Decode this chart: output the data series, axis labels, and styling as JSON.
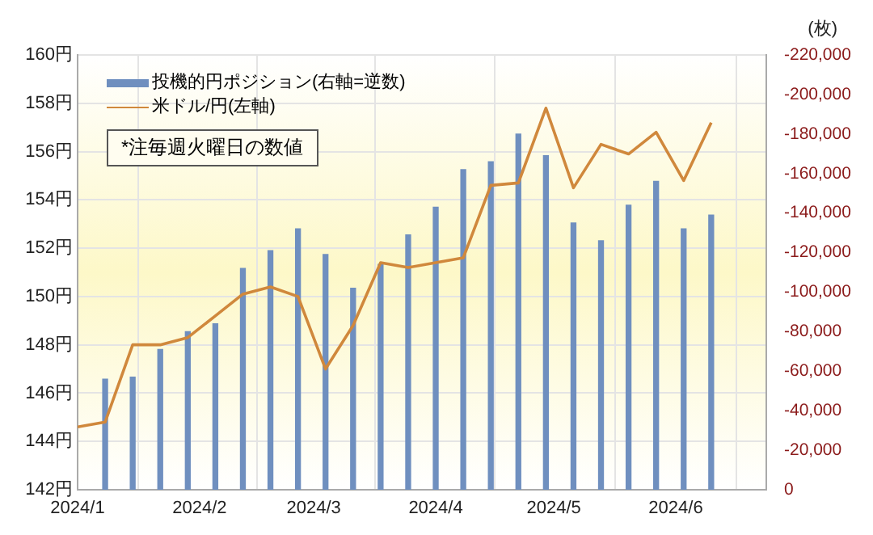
{
  "chart_data": {
    "type": "bar",
    "y2label": "(枚)",
    "legend": "top left",
    "grid": true,
    "annotations": [
      "*注毎週火曜日の数値"
    ],
    "xlim": [
      "2024-01-01",
      "2024-06-24"
    ],
    "xticks": [
      {
        "value": "2024-01-01",
        "label": "2024/1"
      },
      {
        "value": "2024-02-01",
        "label": "2024/2"
      },
      {
        "value": "2024-03-01",
        "label": "2024/3"
      },
      {
        "value": "2024-04-01",
        "label": "2024/4"
      },
      {
        "value": "2024-05-01",
        "label": "2024/5"
      },
      {
        "value": "2024-06-01",
        "label": "2024/6"
      }
    ],
    "ylim": [
      142,
      160
    ],
    "yticks": [
      {
        "value": 142,
        "label": "142円"
      },
      {
        "value": 144,
        "label": "144円"
      },
      {
        "value": 146,
        "label": "146円"
      },
      {
        "value": 148,
        "label": "148円"
      },
      {
        "value": 150,
        "label": "150円"
      },
      {
        "value": 152,
        "label": "152円"
      },
      {
        "value": 154,
        "label": "154円"
      },
      {
        "value": 156,
        "label": "156円"
      },
      {
        "value": 158,
        "label": "158円"
      },
      {
        "value": 160,
        "label": "160円"
      }
    ],
    "y2lim": [
      0,
      -220000
    ],
    "y2ticks": [
      0,
      {
        "value": -20000,
        "label": "-20,000"
      },
      {
        "value": -40000,
        "label": "-40,000"
      },
      {
        "value": -60000,
        "label": "-60,000"
      },
      {
        "value": -80000,
        "label": "-80,000"
      },
      {
        "value": -100000,
        "label": "-100,000"
      },
      {
        "value": -120000,
        "label": "-120,000"
      },
      {
        "value": -140000,
        "label": "-140,000"
      },
      {
        "value": -160000,
        "label": "-160,000"
      },
      {
        "value": -180000,
        "label": "-180,000"
      },
      {
        "value": -200000,
        "label": "-200,000"
      },
      {
        "value": -220000,
        "label": "-220,000"
      }
    ],
    "series": [
      {
        "name": "投機的円ポジション(右軸=逆数)",
        "axis": "y2",
        "color": "#6f8fbf",
        "x": [
          "2024-01-08",
          "2024-01-15",
          "2024-01-22",
          "2024-01-29",
          "2024-02-05",
          "2024-02-12",
          "2024-02-19",
          "2024-02-26",
          "2024-03-04",
          "2024-03-11",
          "2024-03-18",
          "2024-03-25",
          "2024-04-01",
          "2024-04-08",
          "2024-04-15",
          "2024-04-22",
          "2024-04-29",
          "2024-05-06",
          "2024-05-13",
          "2024-05-20",
          "2024-05-27",
          "2024-06-03",
          "2024-06-10"
        ],
        "values": [
          -56000,
          -57000,
          -71000,
          -80000,
          -84000,
          -112000,
          -121000,
          -132000,
          -119000,
          -102000,
          -114000,
          -129000,
          -143000,
          -162000,
          -166000,
          -180000,
          -169000,
          -135000,
          -126000,
          -144000,
          -156000,
          -132000,
          -139000
        ]
      },
      {
        "name": "米ドル/円(左軸)",
        "type": "line",
        "color": "#d0883c",
        "x": [
          "2024-01-01",
          "2024-01-08",
          "2024-01-15",
          "2024-01-22",
          "2024-01-29",
          "2024-02-05",
          "2024-02-12",
          "2024-02-19",
          "2024-02-26",
          "2024-03-04",
          "2024-03-11",
          "2024-03-18",
          "2024-03-25",
          "2024-04-01",
          "2024-04-08",
          "2024-04-15",
          "2024-04-22",
          "2024-04-29",
          "2024-05-06",
          "2024-05-13",
          "2024-05-20",
          "2024-05-27",
          "2024-06-03",
          "2024-06-10"
        ],
        "values": [
          144.6,
          144.8,
          148.0,
          148.0,
          148.3,
          149.2,
          150.1,
          150.4,
          150.0,
          147.0,
          148.8,
          151.4,
          151.2,
          151.4,
          151.6,
          154.6,
          154.7,
          157.8,
          154.5,
          156.3,
          155.9,
          156.8,
          154.8,
          157.2
        ]
      }
    ]
  }
}
